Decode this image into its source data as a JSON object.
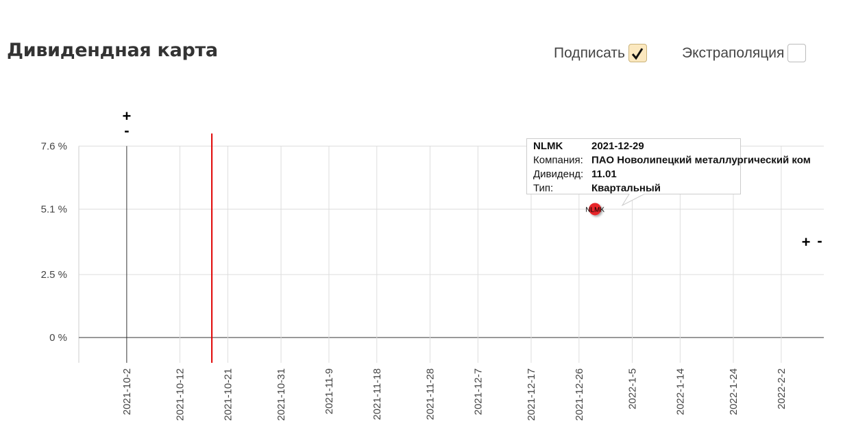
{
  "header": {
    "title": "Дивидендная карта"
  },
  "controls": [
    {
      "label": "Подписать",
      "checked": true
    },
    {
      "label": "Экстраполяция",
      "checked": false
    }
  ],
  "zoom": {
    "top": [
      "+",
      "-"
    ],
    "right": [
      "+",
      "-"
    ]
  },
  "chart_data": {
    "type": "scatter",
    "x": [
      "2021-12-29"
    ],
    "series": [
      {
        "name": "NLMK",
        "color": "#e8262a",
        "values": [
          5.1
        ]
      }
    ],
    "xlim": [
      "2021-09-23",
      "2022-02-10"
    ],
    "xticks": [
      "2021-10-2",
      "2021-10-12",
      "2021-10-21",
      "2021-10-31",
      "2021-11-9",
      "2021-11-18",
      "2021-11-28",
      "2021-12-7",
      "2021-12-17",
      "2021-12-26",
      "2022-1-5",
      "2022-1-14",
      "2022-1-24",
      "2022-2-2"
    ],
    "ylim": [
      -1,
      8.1
    ],
    "yticks": [
      {
        "value": 0,
        "label": "0 %"
      },
      {
        "value": 2.5,
        "label": "2.5 %"
      },
      {
        "value": 5.1,
        "label": "5.1 %"
      },
      {
        "value": 7.6,
        "label": "7.6 %"
      }
    ],
    "grid": true,
    "marker_line": {
      "x": "2021-10-18",
      "color": "#e00000"
    }
  },
  "tooltip": {
    "rows": [
      [
        "NLMK",
        "2021-12-29"
      ],
      [
        "Компания:",
        "ПАО Новолипецкий металлургический ком"
      ],
      [
        "Дивиденд:",
        "11.01"
      ],
      [
        "Тип:",
        "Квартальный"
      ]
    ]
  }
}
